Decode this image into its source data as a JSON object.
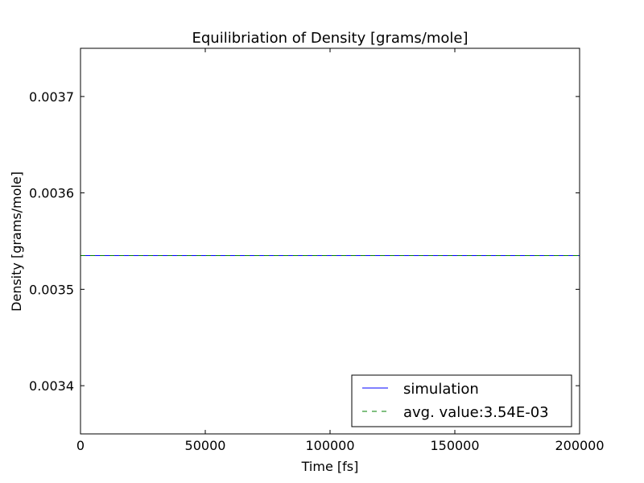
{
  "chart_data": {
    "type": "line",
    "title": "Equilibriation of Density [grams/mole]",
    "xlabel": "Time [fs]",
    "ylabel": "Density [grams/mole]",
    "xlim": [
      0,
      200000
    ],
    "ylim": [
      0.00335,
      0.00375
    ],
    "x_ticks": [
      0,
      50000,
      100000,
      150000,
      200000
    ],
    "x_tick_labels": [
      "0",
      "50000",
      "100000",
      "150000",
      "200000"
    ],
    "y_ticks": [
      0.0034,
      0.0035,
      0.0036,
      0.0037
    ],
    "y_tick_labels": [
      "0.0034",
      "0.0035",
      "0.0036",
      "0.0037"
    ],
    "grid": false,
    "legend_position": "lower-right",
    "series": [
      {
        "name": "simulation",
        "style": "solid",
        "color": "#0000ff",
        "x": [
          0,
          200000
        ],
        "y": [
          0.003535,
          0.003535
        ]
      },
      {
        "name": "avg. value:3.54E-03",
        "style": "dashed",
        "color": "#008000",
        "x": [
          0,
          200000
        ],
        "y": [
          0.003535,
          0.003535
        ]
      }
    ]
  }
}
